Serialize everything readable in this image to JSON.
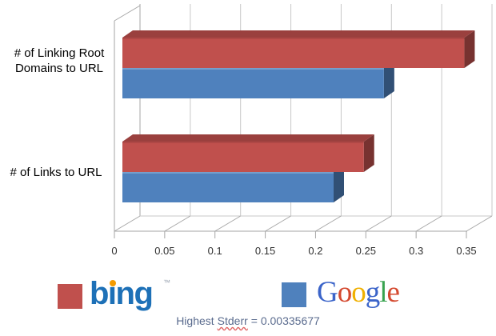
{
  "chart_data": {
    "type": "bar",
    "orientation": "horizontal",
    "style": "3d",
    "title": "",
    "xlabel": "",
    "ylabel": "",
    "categories": [
      "# of Linking Root Domains to URL",
      "# of Links to URL"
    ],
    "series": [
      {
        "name": "bing",
        "color": "#C0504D",
        "values": [
          0.34,
          0.24
        ]
      },
      {
        "name": "Google",
        "color": "#4F81BD",
        "values": [
          0.26,
          0.21
        ]
      }
    ],
    "xlim": [
      0,
      0.35
    ],
    "xtick_labels": [
      "0",
      "0.05",
      "0.1",
      "0.15",
      "0.2",
      "0.25",
      "0.3",
      "0.35"
    ],
    "grid": true,
    "legend_position": "bottom"
  },
  "legend": {
    "bing": {
      "text": "bıng",
      "tm": "™",
      "text_color": "#1D70B7",
      "dot_color": "#F59B00",
      "swatch_color": "#C0504D"
    },
    "google": {
      "swatch_color": "#4F81BD",
      "letters": [
        {
          "ch": "G",
          "color": "#3B64C9"
        },
        {
          "ch": "o",
          "color": "#D4492F"
        },
        {
          "ch": "o",
          "color": "#F0B000"
        },
        {
          "ch": "g",
          "color": "#3B64C9"
        },
        {
          "ch": "l",
          "color": "#38A34F"
        },
        {
          "ch": "e",
          "color": "#D4492F"
        }
      ]
    }
  },
  "footer": {
    "prefix": "Highest",
    "stderr_word": "Stderr",
    "rest": "= 0.00335677",
    "color": "#5A6B8E",
    "underline_color": "#E06666"
  }
}
